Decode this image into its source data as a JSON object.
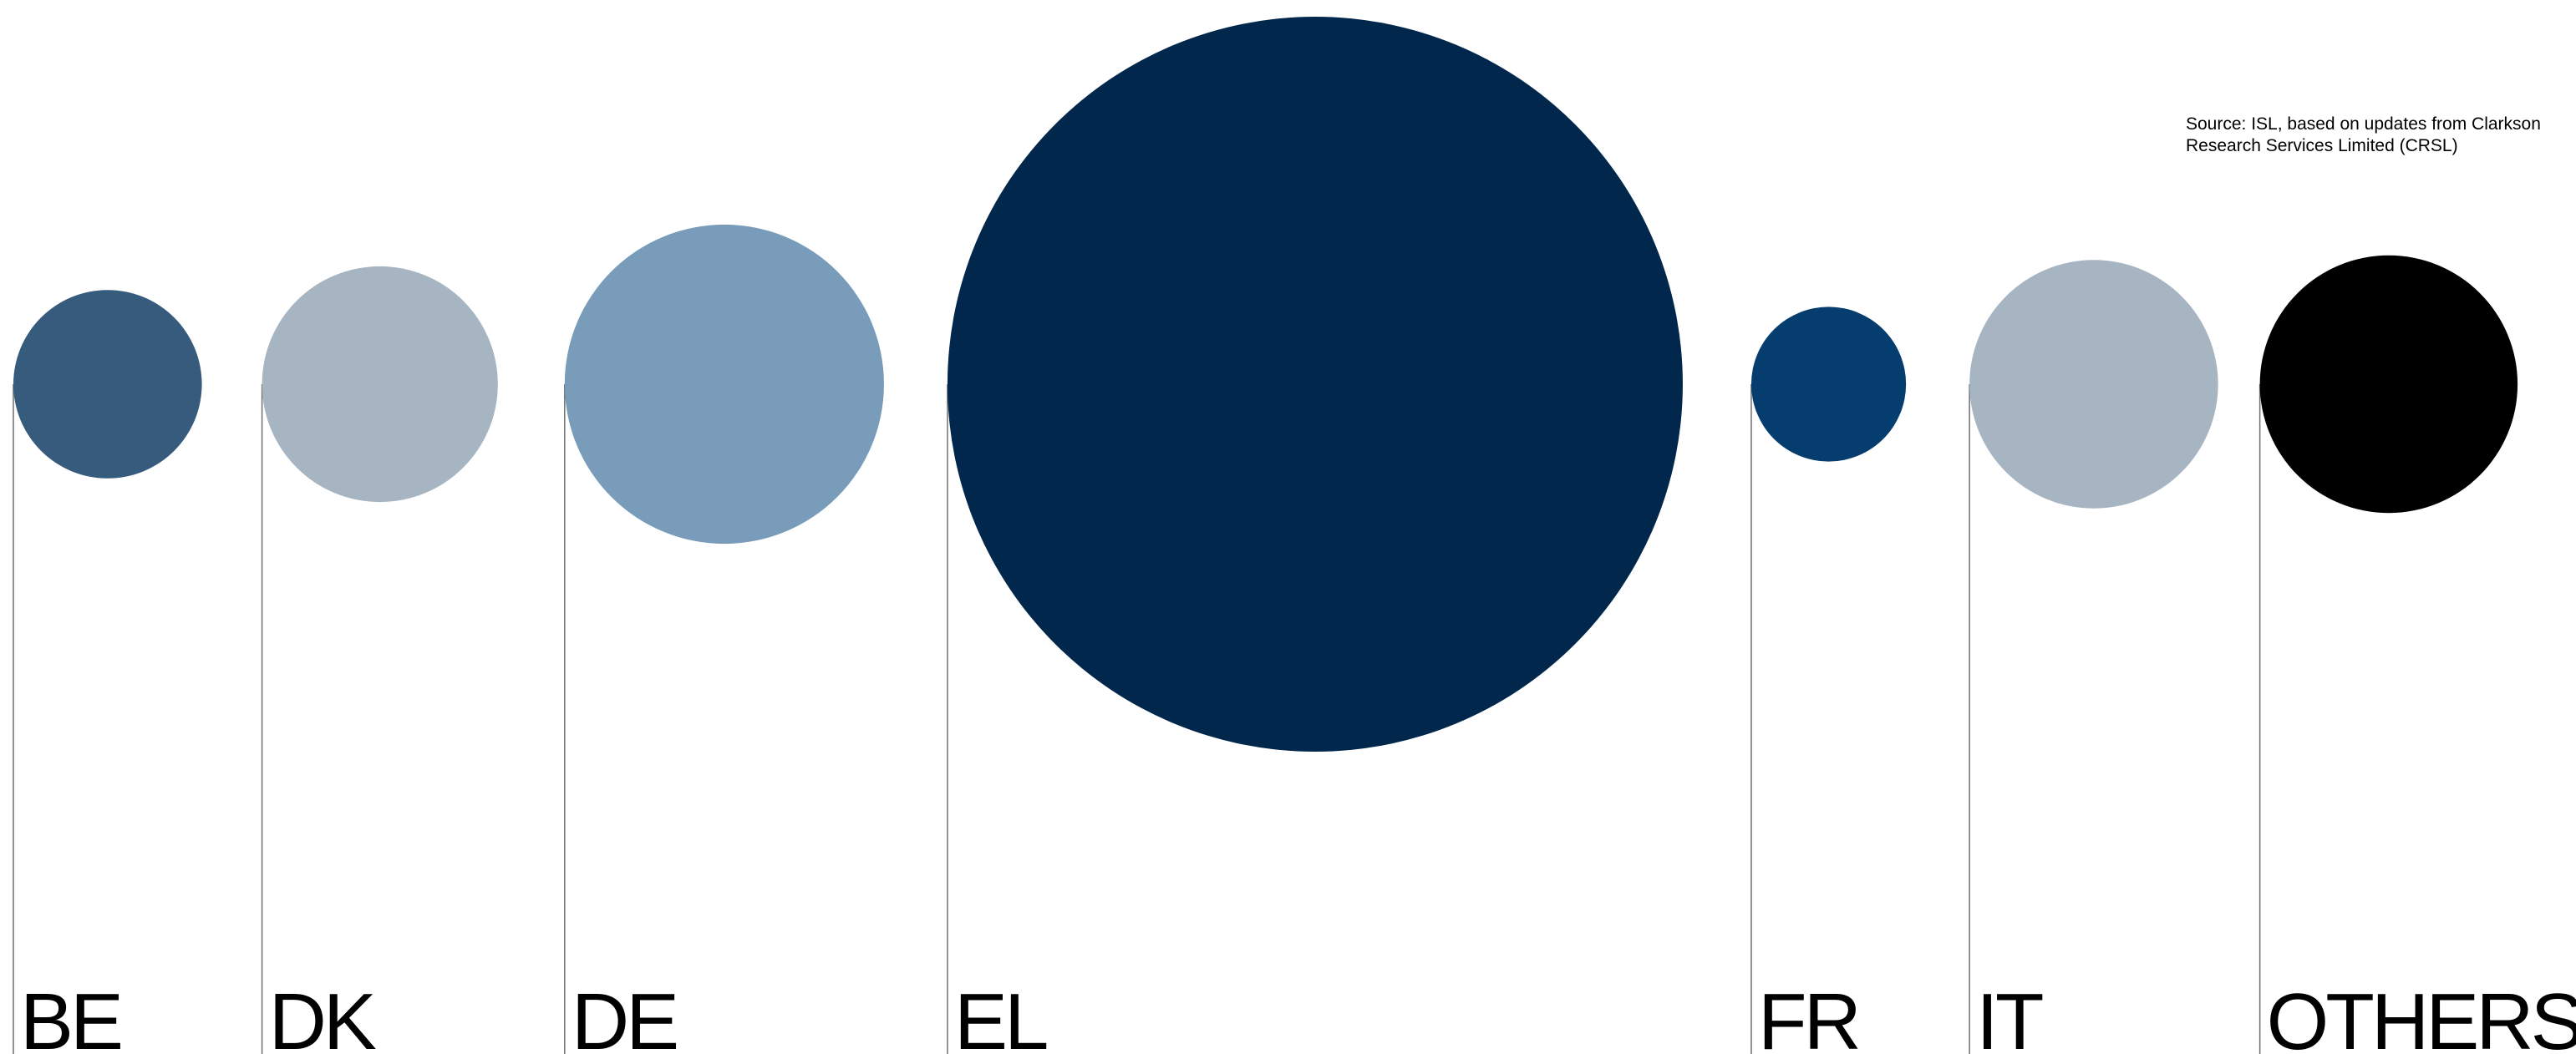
{
  "source_note": "Source: ISL, based on updates from Clarkson Research Services Limited (CRSL)",
  "chart_data": {
    "type": "bubble",
    "title": "",
    "categories": [
      "BE",
      "DK",
      "DE",
      "EL",
      "FR",
      "IT",
      "OTHERS"
    ],
    "values": [
      2.3,
      3.6,
      6.6,
      35.0,
      1.55,
      4.0,
      4.3
    ],
    "colors": [
      "#365B7C",
      "#A7B5C2",
      "#789CBA",
      "#02274C",
      "#063D6F",
      "#A7B5C2",
      "#000000"
    ],
    "value_labels_shown": false,
    "legend": "none",
    "grid": false
  }
}
